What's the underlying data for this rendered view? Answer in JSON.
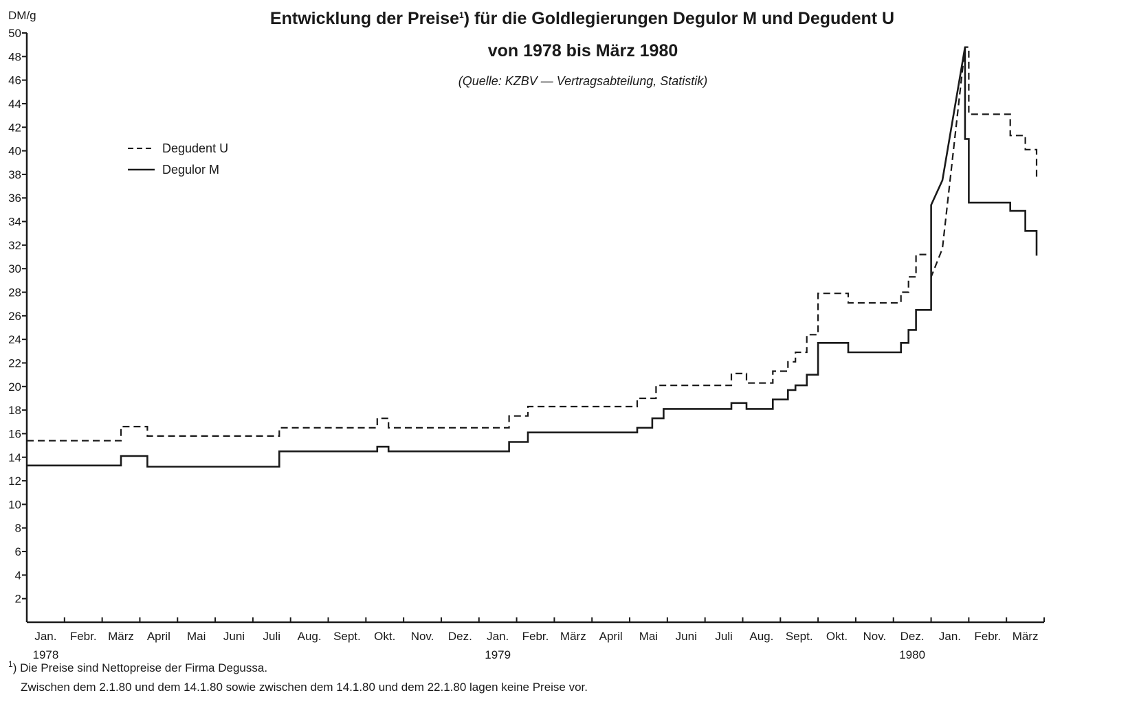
{
  "colors": {
    "ink": "#1a1a1a",
    "background": "#ffffff"
  },
  "chart_data": {
    "type": "line",
    "title_line1": "Entwicklung der Preise",
    "title_sup": "1",
    "title_line1_rest": ") für die Goldlegierungen Degulor M und Degudent U",
    "title_line2": "von 1978 bis März 1980",
    "subtitle": "(Quelle: KZBV — Vertragsabteilung, Statistik)",
    "ylabel": "DM/g",
    "ylim": [
      0,
      50
    ],
    "yticks": [
      2,
      4,
      6,
      8,
      10,
      12,
      14,
      16,
      18,
      20,
      22,
      24,
      26,
      28,
      30,
      32,
      34,
      36,
      38,
      40,
      42,
      44,
      46,
      48,
      50
    ],
    "x_unit": "months since Jan. 1978",
    "xlim": [
      0,
      27
    ],
    "months": [
      "Jan.",
      "Febr.",
      "März",
      "April",
      "Mai",
      "Juni",
      "Juli",
      "Aug.",
      "Sept.",
      "Okt.",
      "Nov.",
      "Dez.",
      "Jan.",
      "Febr.",
      "März",
      "April",
      "Mai",
      "Juni",
      "Juli",
      "Aug.",
      "Sept.",
      "Okt.",
      "Nov.",
      "Dez.",
      "Jan.",
      "Febr.",
      "März"
    ],
    "years": [
      {
        "label": "1978",
        "month_index": 0
      },
      {
        "label": "1979",
        "month_index": 12
      },
      {
        "label": "1980",
        "month_index": 23
      }
    ],
    "legend_position": "top-left",
    "series": [
      {
        "name": "Degudent U",
        "style": "dashed",
        "points": [
          [
            0,
            15.4
          ],
          [
            2.5,
            15.4
          ],
          [
            2.5,
            16.6
          ],
          [
            3.2,
            16.6
          ],
          [
            3.2,
            15.8
          ],
          [
            6.7,
            15.8
          ],
          [
            6.7,
            16.5
          ],
          [
            9.3,
            16.5
          ],
          [
            9.3,
            17.3
          ],
          [
            9.6,
            17.3
          ],
          [
            9.6,
            16.5
          ],
          [
            12.8,
            16.5
          ],
          [
            12.8,
            17.5
          ],
          [
            13.3,
            17.5
          ],
          [
            13.3,
            18.3
          ],
          [
            16.2,
            18.3
          ],
          [
            16.2,
            19.0
          ],
          [
            16.7,
            19.0
          ],
          [
            16.7,
            20.1
          ],
          [
            18.7,
            20.1
          ],
          [
            18.7,
            21.1
          ],
          [
            19.1,
            21.1
          ],
          [
            19.1,
            20.3
          ],
          [
            19.8,
            20.3
          ],
          [
            19.8,
            21.3
          ],
          [
            20.2,
            21.3
          ],
          [
            20.2,
            22.1
          ],
          [
            20.4,
            22.1
          ],
          [
            20.4,
            22.9
          ],
          [
            20.7,
            22.9
          ],
          [
            20.7,
            24.4
          ],
          [
            21.0,
            24.4
          ],
          [
            21.0,
            27.9
          ],
          [
            21.8,
            27.9
          ],
          [
            21.8,
            27.1
          ],
          [
            23.2,
            27.1
          ],
          [
            23.2,
            28.0
          ],
          [
            23.4,
            28.0
          ],
          [
            23.4,
            29.3
          ],
          [
            23.6,
            29.3
          ],
          [
            23.6,
            31.2
          ],
          [
            24.0,
            31.2
          ],
          [
            24.0,
            29.3
          ],
          [
            24.3,
            31.7
          ],
          [
            24.9,
            48.8
          ],
          [
            25.0,
            48.8
          ],
          [
            25.0,
            43.1
          ],
          [
            26.1,
            43.1
          ],
          [
            26.1,
            41.3
          ],
          [
            26.5,
            41.3
          ],
          [
            26.5,
            40.1
          ],
          [
            26.8,
            40.1
          ],
          [
            26.8,
            37.6
          ]
        ]
      },
      {
        "name": "Degulor M",
        "style": "solid",
        "points": [
          [
            0,
            13.3
          ],
          [
            2.5,
            13.3
          ],
          [
            2.5,
            14.1
          ],
          [
            3.2,
            14.1
          ],
          [
            3.2,
            13.2
          ],
          [
            6.7,
            13.2
          ],
          [
            6.7,
            14.5
          ],
          [
            9.3,
            14.5
          ],
          [
            9.3,
            14.9
          ],
          [
            9.6,
            14.9
          ],
          [
            9.6,
            14.5
          ],
          [
            12.8,
            14.5
          ],
          [
            12.8,
            15.3
          ],
          [
            13.3,
            15.3
          ],
          [
            13.3,
            16.1
          ],
          [
            16.2,
            16.1
          ],
          [
            16.2,
            16.5
          ],
          [
            16.6,
            16.5
          ],
          [
            16.6,
            17.3
          ],
          [
            16.9,
            17.3
          ],
          [
            16.9,
            18.1
          ],
          [
            18.7,
            18.1
          ],
          [
            18.7,
            18.6
          ],
          [
            19.1,
            18.6
          ],
          [
            19.1,
            18.1
          ],
          [
            19.8,
            18.1
          ],
          [
            19.8,
            18.9
          ],
          [
            20.2,
            18.9
          ],
          [
            20.2,
            19.7
          ],
          [
            20.4,
            19.7
          ],
          [
            20.4,
            20.1
          ],
          [
            20.7,
            20.1
          ],
          [
            20.7,
            21.0
          ],
          [
            21.0,
            21.0
          ],
          [
            21.0,
            23.7
          ],
          [
            21.8,
            23.7
          ],
          [
            21.8,
            22.9
          ],
          [
            23.2,
            22.9
          ],
          [
            23.2,
            23.7
          ],
          [
            23.4,
            23.7
          ],
          [
            23.4,
            24.8
          ],
          [
            23.6,
            24.8
          ],
          [
            23.6,
            26.5
          ],
          [
            24.0,
            26.5
          ],
          [
            24.0,
            35.4
          ],
          [
            24.3,
            37.5
          ],
          [
            24.9,
            48.8
          ],
          [
            24.9,
            41.0
          ],
          [
            25.0,
            41.0
          ],
          [
            25.0,
            35.6
          ],
          [
            26.1,
            35.6
          ],
          [
            26.1,
            34.9
          ],
          [
            26.5,
            34.9
          ],
          [
            26.5,
            33.2
          ],
          [
            26.8,
            33.2
          ],
          [
            26.8,
            31.1
          ]
        ]
      }
    ]
  },
  "footnote": {
    "marker": "1",
    "line1": ") Die Preise sind Nettopreise der Firma Degussa.",
    "line2": "Zwischen dem 2.1.80 und dem 14.1.80 sowie zwischen dem 14.1.80 und dem 22.1.80  lagen keine Preise vor."
  }
}
